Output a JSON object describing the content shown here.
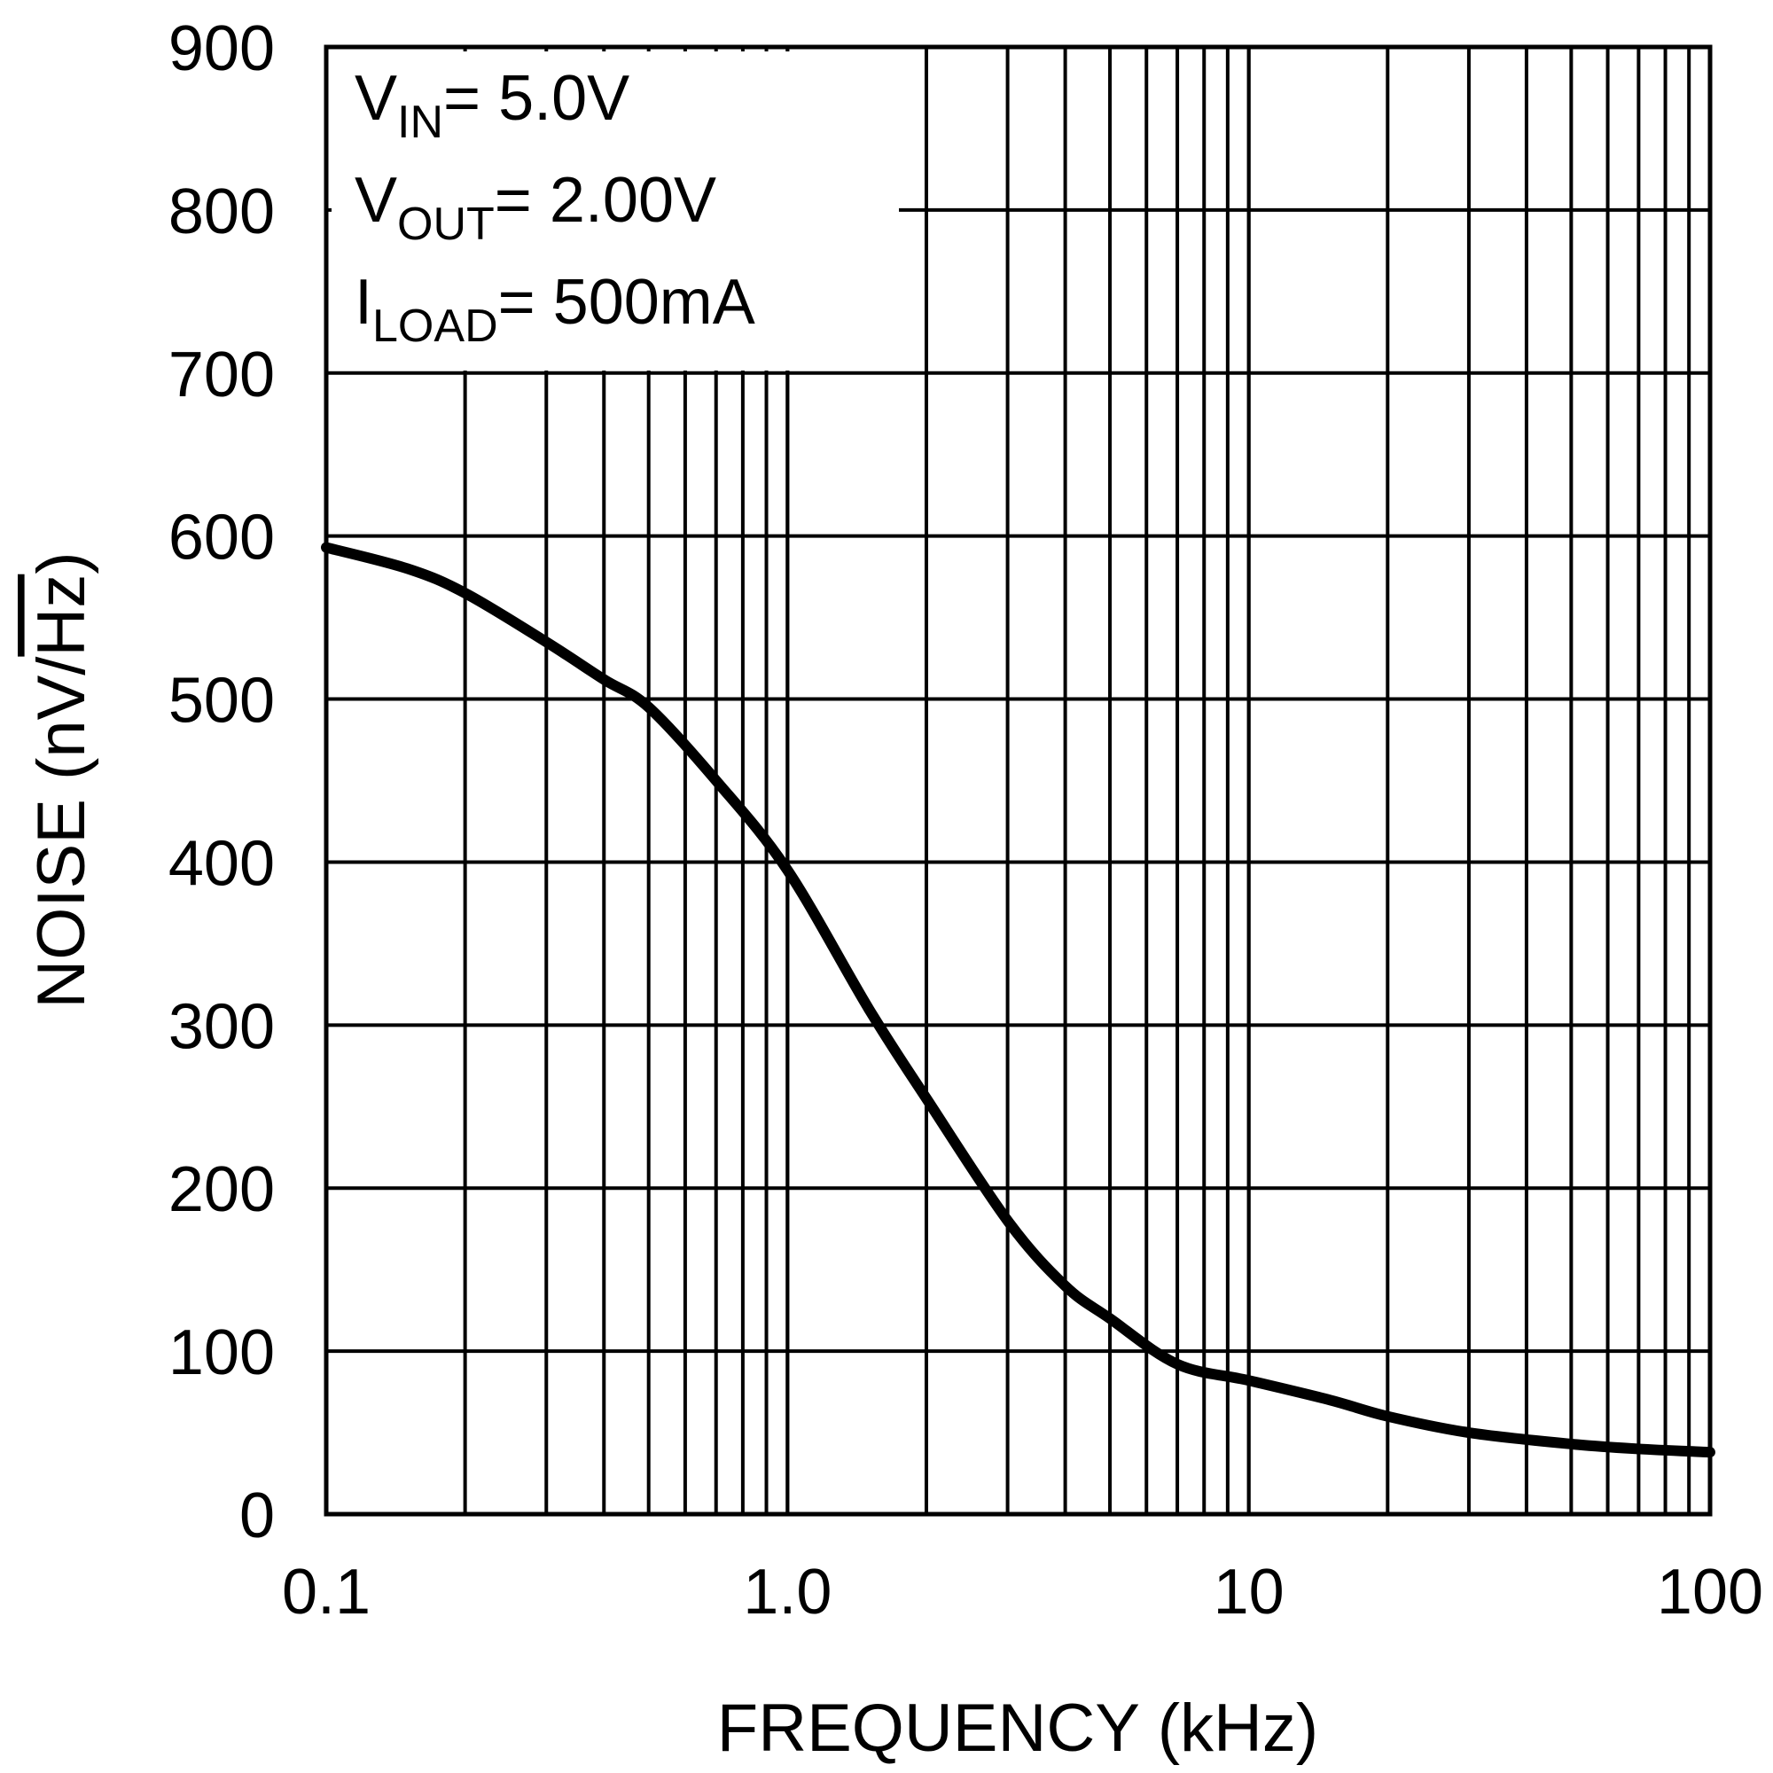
{
  "chart_data": {
    "type": "line",
    "title": "",
    "xlabel": "FREQUENCY (kHz)",
    "ylabel_prefix": "NOISE (nV/",
    "ylabel_radicand": "Hz",
    "ylabel_suffix": ")",
    "x_scale": "log",
    "xlim": [
      0.1,
      100
    ],
    "ylim": [
      0,
      900
    ],
    "grid": true,
    "x_ticks": [
      0.1,
      1,
      10,
      100
    ],
    "x_tick_labels": [
      "0.1",
      "1.0",
      "10",
      "100"
    ],
    "y_ticks": [
      0,
      100,
      200,
      300,
      400,
      500,
      600,
      700,
      800,
      900
    ],
    "y_tick_labels": [
      "0",
      "100",
      "200",
      "300",
      "400",
      "500",
      "600",
      "700",
      "800",
      "900"
    ],
    "annotations": [
      {
        "main": "V",
        "sub": "IN",
        "rest": "= 5.0V"
      },
      {
        "main": "V",
        "sub": "OUT",
        "rest": "= 2.00V"
      },
      {
        "main": "I",
        "sub": "LOAD",
        "rest": "= 500mA"
      }
    ],
    "line_color": "#000000",
    "series": [
      {
        "x": [
          0.1,
          0.15,
          0.2,
          0.3,
          0.4,
          0.5,
          0.7,
          1.0,
          1.5,
          2.0,
          3.0,
          4.0,
          5.0,
          7.0,
          10,
          15,
          20,
          30,
          50,
          70,
          100
        ],
        "y": [
          593,
          580,
          565,
          535,
          512,
          495,
          450,
          395,
          310,
          255,
          180,
          140,
          120,
          92,
          82,
          70,
          60,
          50,
          43,
          40,
          38
        ]
      }
    ]
  }
}
